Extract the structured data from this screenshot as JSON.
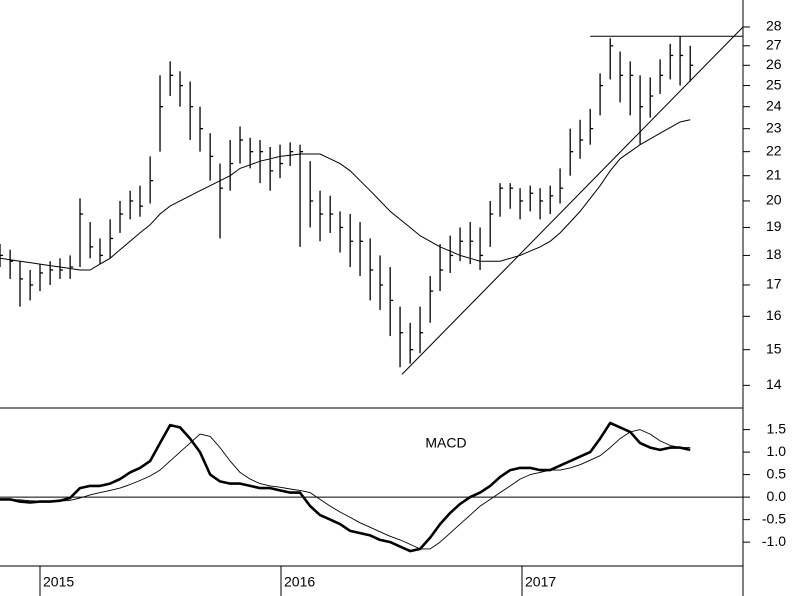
{
  "chart_data": [
    {
      "type": "ohlc",
      "log": true,
      "xlim": [
        2014.834,
        2017.917
      ],
      "ylim": [
        13.4,
        29.5
      ],
      "yticks": [
        14,
        15,
        16,
        17,
        18,
        19,
        20,
        21,
        22,
        23,
        24,
        25,
        26,
        27,
        28
      ],
      "x": [
        2014.834,
        2014.876,
        2014.917,
        2014.959,
        2015.0,
        2015.042,
        2015.083,
        2015.125,
        2015.166,
        2015.208,
        2015.249,
        2015.291,
        2015.332,
        2015.374,
        2015.415,
        2015.457,
        2015.498,
        2015.54,
        2015.581,
        2015.623,
        2015.664,
        2015.706,
        2015.747,
        2015.789,
        2015.83,
        2015.872,
        2015.913,
        2015.955,
        2015.996,
        2016.038,
        2016.079,
        2016.121,
        2016.162,
        2016.204,
        2016.245,
        2016.287,
        2016.328,
        2016.37,
        2016.411,
        2016.453,
        2016.494,
        2016.536,
        2016.577,
        2016.619,
        2016.66,
        2016.702,
        2016.743,
        2016.785,
        2016.826,
        2016.868,
        2016.909,
        2016.951,
        2016.992,
        2017.034,
        2017.075,
        2017.117,
        2017.158,
        2017.2,
        2017.241,
        2017.283,
        2017.324,
        2017.366,
        2017.407,
        2017.449,
        2017.49,
        2017.532,
        2017.573,
        2017.615,
        2017.656,
        2017.698
      ],
      "color": "#000000",
      "series": [
        {
          "values": [
            18.4,
            18.2,
            17.8,
            17.5,
            17.7,
            17.8,
            17.9,
            18.0,
            20.1,
            19.2,
            18.6,
            19.3,
            20.0,
            20.4,
            20.6,
            21.8,
            25.5,
            26.2,
            25.7,
            25.2,
            24.0,
            22.8,
            21.5,
            22.5,
            23.1,
            22.6,
            22.5,
            22.2,
            22.3,
            22.4,
            22.3,
            21.6,
            20.4,
            20.2,
            19.6,
            19.5,
            19.2,
            18.6,
            18.0,
            17.6,
            16.3,
            15.8,
            16.3,
            17.3,
            18.4,
            18.7,
            19.0,
            19.2,
            19.0,
            20.0,
            20.7,
            20.7,
            20.5,
            20.6,
            20.5,
            20.6,
            21.3,
            23.0,
            23.4,
            23.9,
            25.6,
            27.4,
            26.7,
            26.2,
            25.5,
            25.4,
            26.3,
            27.1,
            27.5,
            27.0
          ]
        },
        {
          "values": [
            17.6,
            17.2,
            16.3,
            16.5,
            16.8,
            17.0,
            17.2,
            17.2,
            17.6,
            17.9,
            17.7,
            17.9,
            18.8,
            19.3,
            19.4,
            19.9,
            22.0,
            24.5,
            24.0,
            22.5,
            22.0,
            20.8,
            18.6,
            20.4,
            21.5,
            21.3,
            20.7,
            20.4,
            20.9,
            21.4,
            18.3,
            19.0,
            18.5,
            18.8,
            18.1,
            17.6,
            17.3,
            16.5,
            16.2,
            15.4,
            14.5,
            14.6,
            14.9,
            15.8,
            16.8,
            17.4,
            17.8,
            17.7,
            17.5,
            18.3,
            19.4,
            19.7,
            19.3,
            19.6,
            19.3,
            19.5,
            19.9,
            21.0,
            21.7,
            22.3,
            23.6,
            25.3,
            24.2,
            23.6,
            22.3,
            23.5,
            24.6,
            25.3,
            25.0,
            25.2
          ]
        },
        {
          "values": [
            18.0,
            17.8,
            17.2,
            17.0,
            17.4,
            17.5,
            17.5,
            17.6,
            19.5,
            18.3,
            18.0,
            18.6,
            19.5,
            20.0,
            19.8,
            20.8,
            24.0,
            25.5,
            25.0,
            24.0,
            23.0,
            21.8,
            20.5,
            21.5,
            22.5,
            22.0,
            22.0,
            21.2,
            21.5,
            22.0,
            22.0,
            20.0,
            19.5,
            19.5,
            19.0,
            18.5,
            18.5,
            17.5,
            17.0,
            16.5,
            15.5,
            15.0,
            15.5,
            16.8,
            17.5,
            18.0,
            18.5,
            18.5,
            18.0,
            19.5,
            20.5,
            20.5,
            20.0,
            20.3,
            20.0,
            20.2,
            20.5,
            22.0,
            22.5,
            23.0,
            25.0,
            27.0,
            25.5,
            25.5,
            24.0,
            24.5,
            25.5,
            26.5,
            26.5,
            26.0
          ]
        }
      ],
      "ma": [
        17.9,
        17.85,
        17.8,
        17.75,
        17.7,
        17.65,
        17.6,
        17.55,
        17.5,
        17.5,
        17.7,
        17.9,
        18.2,
        18.5,
        18.8,
        19.1,
        19.5,
        19.8,
        20.0,
        20.2,
        20.4,
        20.6,
        20.8,
        21.0,
        21.3,
        21.45,
        21.6,
        21.7,
        21.8,
        21.85,
        21.9,
        21.9,
        21.9,
        21.7,
        21.5,
        21.2,
        20.8,
        20.4,
        20.0,
        19.6,
        19.3,
        19.0,
        18.7,
        18.5,
        18.3,
        18.15,
        18.0,
        17.9,
        17.8,
        17.8,
        17.8,
        17.9,
        18.0,
        18.15,
        18.3,
        18.5,
        18.8,
        19.2,
        19.6,
        20.1,
        20.6,
        21.2,
        21.7,
        22.0,
        22.3,
        22.55,
        22.8,
        23.05,
        23.3,
        23.4
      ],
      "lines": [
        {
          "x": [
            2017.283,
            2017.917
          ],
          "y": [
            27.5,
            27.5
          ]
        },
        {
          "x": [
            2016.502,
            2017.917
          ],
          "y": [
            14.3,
            28.0
          ]
        }
      ]
    },
    {
      "type": "line",
      "title": "MACD",
      "xlim": [
        2014.834,
        2017.917
      ],
      "ylim": [
        -1.53,
        1.98
      ],
      "xticks": [
        2015,
        2016,
        2017
      ],
      "yticks": [
        {
          "value": -1.0,
          "label": "-1.0"
        },
        -0.5,
        {
          "value": 0.0,
          "label": "0.0"
        },
        0.5,
        {
          "value": 1.0,
          "label": "1.0"
        },
        1.5
      ],
      "x": [
        2014.834,
        2014.876,
        2014.917,
        2014.959,
        2015.0,
        2015.042,
        2015.083,
        2015.125,
        2015.166,
        2015.208,
        2015.249,
        2015.291,
        2015.332,
        2015.374,
        2015.415,
        2015.457,
        2015.498,
        2015.54,
        2015.581,
        2015.623,
        2015.664,
        2015.706,
        2015.747,
        2015.789,
        2015.83,
        2015.872,
        2015.913,
        2015.955,
        2015.996,
        2016.038,
        2016.079,
        2016.121,
        2016.162,
        2016.204,
        2016.245,
        2016.287,
        2016.328,
        2016.37,
        2016.411,
        2016.453,
        2016.494,
        2016.536,
        2016.577,
        2016.619,
        2016.66,
        2016.702,
        2016.743,
        2016.785,
        2016.826,
        2016.868,
        2016.909,
        2016.951,
        2016.992,
        2017.034,
        2017.075,
        2017.117,
        2017.158,
        2017.2,
        2017.241,
        2017.283,
        2017.324,
        2017.366,
        2017.407,
        2017.449,
        2017.49,
        2017.532,
        2017.573,
        2017.615,
        2017.656,
        2017.698
      ],
      "series": [
        {
          "color": "#000000",
          "width": 2.6,
          "values": [
            -0.05,
            -0.05,
            -0.1,
            -0.12,
            -0.1,
            -0.1,
            -0.08,
            -0.02,
            0.2,
            0.25,
            0.25,
            0.3,
            0.4,
            0.55,
            0.65,
            0.8,
            1.2,
            1.6,
            1.55,
            1.3,
            1.0,
            0.5,
            0.35,
            0.3,
            0.3,
            0.25,
            0.2,
            0.2,
            0.15,
            0.1,
            0.1,
            -0.2,
            -0.4,
            -0.5,
            -0.6,
            -0.75,
            -0.8,
            -0.85,
            -0.95,
            -1.0,
            -1.1,
            -1.2,
            -1.15,
            -0.9,
            -0.6,
            -0.35,
            -0.15,
            0.0,
            0.1,
            0.25,
            0.45,
            0.6,
            0.65,
            0.65,
            0.6,
            0.6,
            0.7,
            0.8,
            0.9,
            1.0,
            1.3,
            1.65,
            1.55,
            1.45,
            1.2,
            1.1,
            1.05,
            1.1,
            1.1,
            1.05
          ]
        },
        {
          "color": "#000000",
          "width": 0.9,
          "values": [
            -0.05,
            -0.05,
            -0.06,
            -0.08,
            -0.09,
            -0.1,
            -0.09,
            -0.07,
            -0.02,
            0.05,
            0.1,
            0.15,
            0.2,
            0.28,
            0.37,
            0.47,
            0.6,
            0.8,
            1.0,
            1.2,
            1.4,
            1.35,
            1.1,
            0.8,
            0.55,
            0.4,
            0.3,
            0.25,
            0.22,
            0.18,
            0.15,
            0.1,
            -0.05,
            -0.2,
            -0.33,
            -0.45,
            -0.57,
            -0.67,
            -0.77,
            -0.87,
            -0.95,
            -1.05,
            -1.15,
            -1.15,
            -1.0,
            -0.8,
            -0.6,
            -0.4,
            -0.2,
            -0.05,
            0.1,
            0.25,
            0.4,
            0.5,
            0.55,
            0.6,
            0.6,
            0.65,
            0.72,
            0.82,
            0.92,
            1.1,
            1.3,
            1.45,
            1.5,
            1.4,
            1.25,
            1.15,
            1.1,
            1.1
          ]
        }
      ]
    }
  ]
}
